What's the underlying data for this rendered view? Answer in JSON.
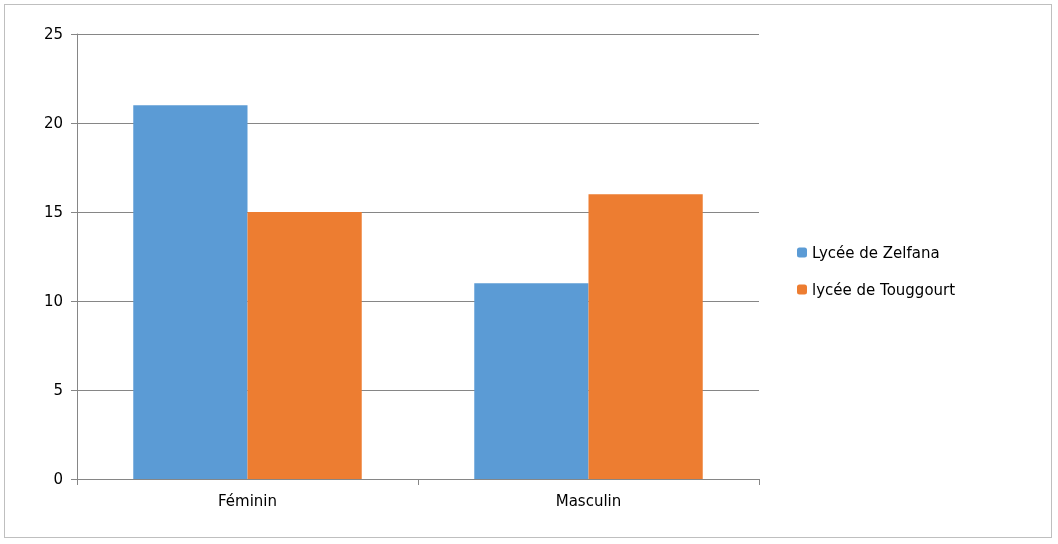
{
  "chart_data": {
    "type": "bar",
    "categories": [
      "Féminin",
      "Masculin"
    ],
    "series": [
      {
        "name": "Lycée de Zelfana",
        "color": "#5b9bd5",
        "values": [
          21,
          11
        ]
      },
      {
        "name": "lycée de Touggourt",
        "color": "#ed7d31",
        "values": [
          15,
          16
        ]
      }
    ],
    "ylim": [
      0,
      25
    ],
    "yticks": [
      0,
      5,
      10,
      15,
      20,
      25
    ],
    "grid": "y",
    "legend": "right"
  }
}
